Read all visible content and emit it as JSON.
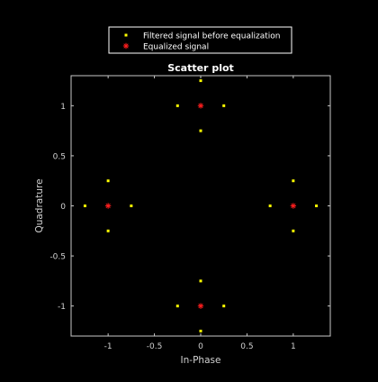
{
  "colors": {
    "background": "#000000",
    "axes_box": "#c8c8c8",
    "text": "#ffffff",
    "tick_text": "#d2d2d2",
    "legend_border": "#ffffff",
    "series_filtered": "#ffff00",
    "series_equalized": "#ff1e1e"
  },
  "chart_data": {
    "type": "scatter",
    "title": "Scatter plot",
    "xlabel": "In-Phase",
    "ylabel": "Quadrature",
    "xlim": [
      -1.4,
      1.4
    ],
    "ylim": [
      -1.3,
      1.3
    ],
    "grid": false,
    "legend_position": "top",
    "xticks": [
      {
        "value": -1,
        "label": "-1"
      },
      {
        "value": -0.5,
        "label": "-0.5"
      },
      {
        "value": 0,
        "label": "0"
      },
      {
        "value": 0.5,
        "label": "0.5"
      },
      {
        "value": 1,
        "label": "1"
      }
    ],
    "yticks": [
      {
        "value": 1,
        "label": "1"
      },
      {
        "value": 0.5,
        "label": "0.5"
      },
      {
        "value": 0,
        "label": "0"
      },
      {
        "value": -0.5,
        "label": "-0.5"
      },
      {
        "value": -1,
        "label": "-1"
      }
    ],
    "series": [
      {
        "name": "Filtered signal before equalization",
        "marker": "square",
        "color": "#ffff00",
        "points": [
          [
            0,
            1.25
          ],
          [
            -0.25,
            1
          ],
          [
            0.25,
            1
          ],
          [
            0,
            0.75
          ],
          [
            -1,
            0.25
          ],
          [
            -1.25,
            0
          ],
          [
            -0.75,
            0
          ],
          [
            -1,
            -0.25
          ],
          [
            1,
            0.25
          ],
          [
            0.75,
            0
          ],
          [
            1.25,
            0
          ],
          [
            1,
            -0.25
          ],
          [
            0,
            -0.75
          ],
          [
            -0.25,
            -1
          ],
          [
            0.25,
            -1
          ],
          [
            0,
            -1.25
          ]
        ]
      },
      {
        "name": "Equalized signal",
        "marker": "asterisk",
        "color": "#ff1e1e",
        "points": [
          [
            0,
            1
          ],
          [
            -1,
            0
          ],
          [
            1,
            0
          ],
          [
            0,
            -1
          ]
        ]
      }
    ]
  }
}
